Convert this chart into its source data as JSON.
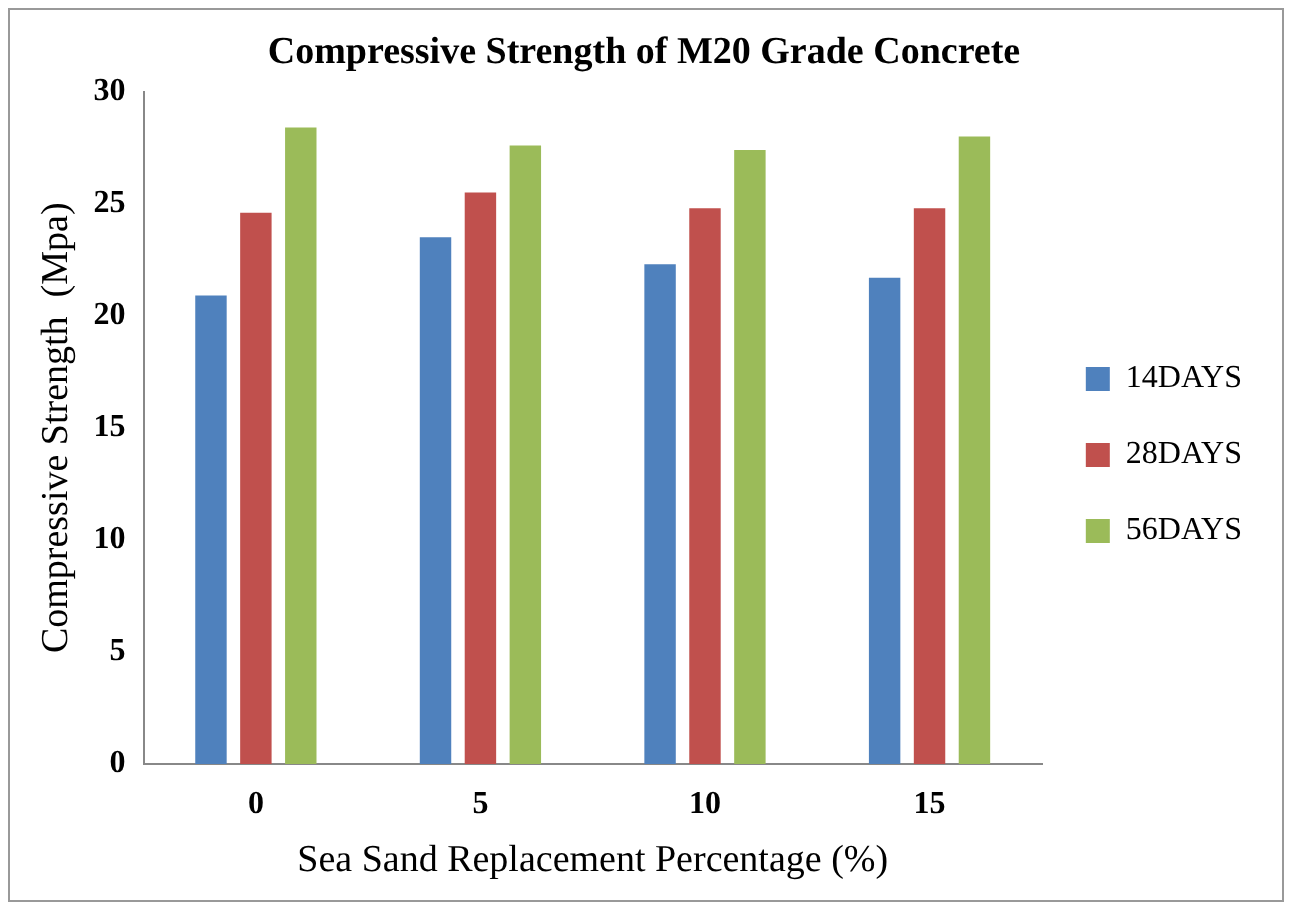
{
  "chart_data": {
    "type": "bar",
    "title": "Compressive Strength of M20 Grade Concrete",
    "xlabel": "Sea Sand Replacement Percentage (%)",
    "ylabel": "Compressive Strength  (Mpa)",
    "categories": [
      "0",
      "5",
      "10",
      "15"
    ],
    "series": [
      {
        "name": "14DAYS",
        "color": "#4f81bd",
        "values": [
          20.9,
          23.5,
          22.3,
          21.7
        ]
      },
      {
        "name": "28DAYS",
        "color": "#c0504d",
        "values": [
          24.6,
          25.5,
          24.8,
          24.8
        ]
      },
      {
        "name": "56DAYS",
        "color": "#9bbb59",
        "values": [
          28.4,
          27.6,
          27.4,
          28.0
        ]
      }
    ],
    "ylim": [
      0,
      30
    ],
    "yticks": [
      0,
      5,
      10,
      15,
      20,
      25,
      30
    ],
    "grid": false,
    "legend": "right"
  }
}
